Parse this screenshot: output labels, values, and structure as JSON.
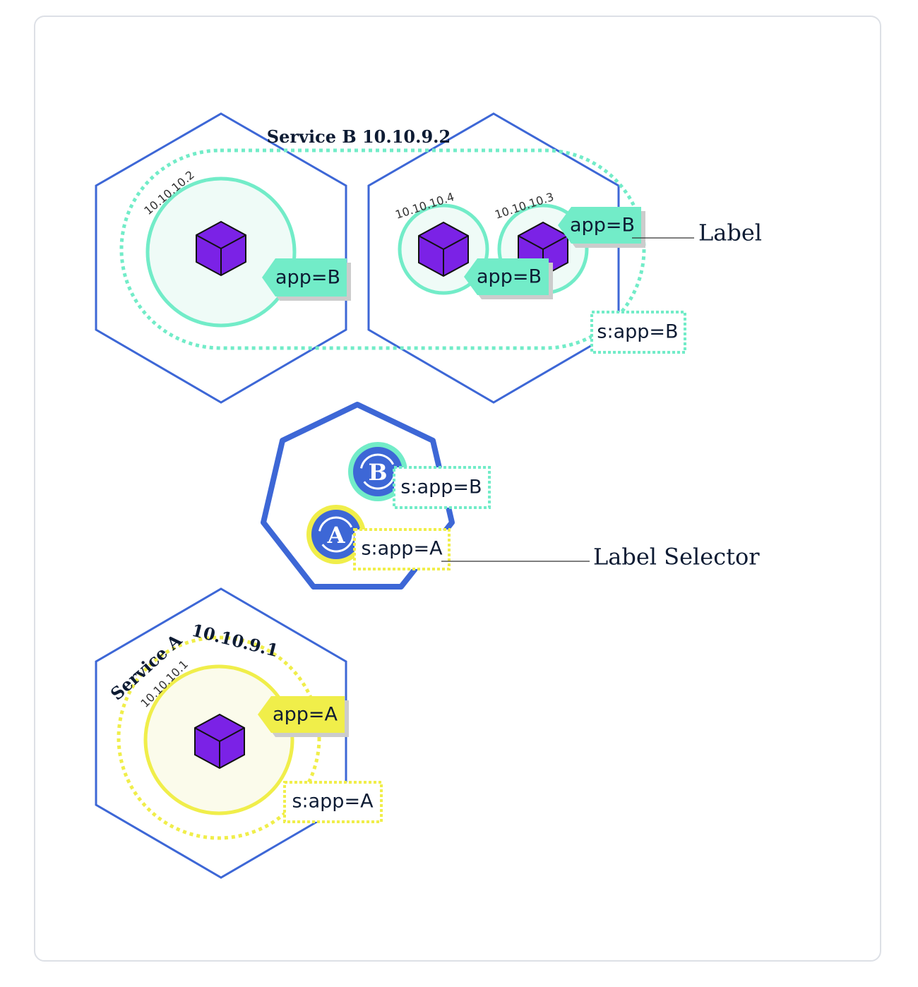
{
  "service_b": {
    "title": "Service B 10.10.9.2",
    "selector": "s:app=B"
  },
  "nodes": [
    {
      "pods": [
        {
          "ip": "10.10.10.2",
          "label": "app=B"
        }
      ]
    },
    {
      "pods": [
        {
          "ip": "10.10.10.4",
          "label": "app=B"
        },
        {
          "ip": "10.10.10.3",
          "label": "app=B"
        }
      ]
    }
  ],
  "control_plane": {
    "services": [
      {
        "letter": "B",
        "selector": "s:app=B"
      },
      {
        "letter": "A",
        "selector": "s:app=A"
      }
    ]
  },
  "service_a": {
    "name": "Service A",
    "ip": "10.10.9.1",
    "selector": "s:app=A",
    "pod": {
      "ip": "10.10.10.1",
      "label": "app=A"
    }
  },
  "callouts": {
    "label": "Label",
    "label_selector": "Label Selector"
  }
}
